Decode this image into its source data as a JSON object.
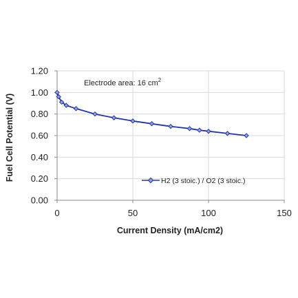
{
  "chart_data": {
    "type": "scatter",
    "title": "",
    "xlabel": "Current Density (mA/cm2)",
    "ylabel": "Fuel Cell Potential (V)",
    "xlim": [
      0,
      150
    ],
    "ylim": [
      0,
      1.2
    ],
    "x_ticks": [
      "0",
      "50",
      "100",
      "150"
    ],
    "y_ticks": [
      "0.00",
      "0.20",
      "0.40",
      "0.60",
      "0.80",
      "1.00",
      "1.20"
    ],
    "grid": true,
    "legend_position": "lower-right",
    "annotation": {
      "text": "Electrode area: 16 cm",
      "superscript": "2"
    },
    "series": [
      {
        "name": "H2 (3 stoic.) / O2 (3 stoic.)",
        "color": "#2233aa",
        "marker": "diamond",
        "x": [
          0,
          1,
          3,
          6,
          12.5,
          25,
          37.5,
          50,
          62.5,
          75,
          87.5,
          94,
          100,
          112.5,
          125
        ],
        "y": [
          1.0,
          0.96,
          0.91,
          0.88,
          0.85,
          0.8,
          0.765,
          0.735,
          0.71,
          0.685,
          0.665,
          0.65,
          0.64,
          0.62,
          0.6
        ]
      }
    ]
  }
}
